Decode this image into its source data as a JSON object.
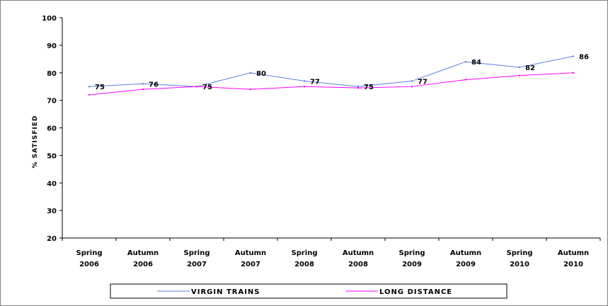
{
  "chart_data": {
    "type": "line",
    "title": "",
    "xlabel": "",
    "ylabel": "% SATISFIED",
    "ylim": [
      20,
      100
    ],
    "yticks": [
      20,
      30,
      40,
      50,
      60,
      70,
      80,
      90,
      100
    ],
    "grid": false,
    "legend_position": "bottom",
    "categories": [
      [
        "Spring",
        "2006"
      ],
      [
        "Autumn",
        "2006"
      ],
      [
        "Spring",
        "2007"
      ],
      [
        "Autumn",
        "2007"
      ],
      [
        "Spring",
        "2008"
      ],
      [
        "Autumn",
        "2008"
      ],
      [
        "Spring",
        "2009"
      ],
      [
        "Autumn",
        "2009"
      ],
      [
        "Spring",
        "2010"
      ],
      [
        "Autumn",
        "2010"
      ]
    ],
    "series": [
      {
        "name": "VIRGIN TRAINS",
        "color": "#5b7fde",
        "values": [
          75,
          76,
          75,
          80,
          77,
          75,
          77,
          84,
          82,
          86
        ],
        "labels": [
          "75",
          "76",
          "75",
          "80",
          "77",
          "75",
          "77",
          "84",
          "82",
          "86"
        ]
      },
      {
        "name": "LONG DISTANCE",
        "color": "#ff00ff",
        "values": [
          72,
          74,
          75,
          74,
          75,
          74.5,
          75,
          77.5,
          79,
          80
        ]
      }
    ]
  }
}
